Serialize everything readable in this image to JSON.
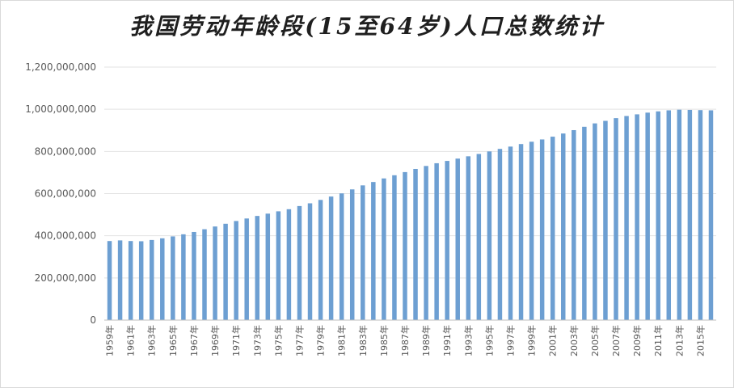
{
  "chart_data": {
    "type": "bar",
    "title": "我国劳动年龄段(15至64岁)人口总数统计",
    "xlabel": "",
    "ylabel": "",
    "ylim": [
      0,
      1200000000
    ],
    "yticks": [
      0,
      200000000,
      400000000,
      600000000,
      800000000,
      1000000000,
      1200000000
    ],
    "ytick_labels": [
      "0",
      "200,000,000",
      "400,000,000",
      "600,000,000",
      "800,000,000",
      "1,000,000,000",
      "1,200,000,000"
    ],
    "grid": true,
    "legend": "none",
    "bar_color": "#6d9fd2",
    "categories": [
      "1959年",
      "1960年",
      "1961年",
      "1962年",
      "1963年",
      "1964年",
      "1965年",
      "1966年",
      "1967年",
      "1968年",
      "1969年",
      "1970年",
      "1971年",
      "1972年",
      "1973年",
      "1974年",
      "1975年",
      "1976年",
      "1977年",
      "1978年",
      "1979年",
      "1980年",
      "1981年",
      "1982年",
      "1983年",
      "1984年",
      "1985年",
      "1986年",
      "1987年",
      "1988年",
      "1989年",
      "1990年",
      "1991年",
      "1992年",
      "1993年",
      "1994年",
      "1995年",
      "1996年",
      "1997年",
      "1998年",
      "1999年",
      "2000年",
      "2001年",
      "2002年",
      "2003年",
      "2004年",
      "2005年",
      "2006年",
      "2007年",
      "2008年",
      "2009年",
      "2010年",
      "2011年",
      "2012年",
      "2013年",
      "2014年",
      "2015年",
      "2016年"
    ],
    "shown_category_labels": [
      "1959年",
      "1961年",
      "1963年",
      "1965年",
      "1967年",
      "1969年",
      "1971年",
      "1973年",
      "1975年",
      "1977年",
      "1979年",
      "1981年",
      "1983年",
      "1985年",
      "1987年",
      "1989年",
      "1991年",
      "1993年",
      "1995年",
      "1997年",
      "1999年",
      "2001年",
      "2003年",
      "2005年",
      "2007年",
      "2009年",
      "2011年",
      "2013年",
      "2015年"
    ],
    "values": [
      375000000,
      378000000,
      375000000,
      374000000,
      380000000,
      388000000,
      397000000,
      407000000,
      418000000,
      431000000,
      444000000,
      457000000,
      470000000,
      482000000,
      494000000,
      505000000,
      516000000,
      526000000,
      541000000,
      554000000,
      570000000,
      586000000,
      601000000,
      620000000,
      639000000,
      655000000,
      672000000,
      687000000,
      702000000,
      717000000,
      731000000,
      744000000,
      755000000,
      766000000,
      777000000,
      788000000,
      800000000,
      812000000,
      823000000,
      835000000,
      846000000,
      857000000,
      870000000,
      885000000,
      901000000,
      917000000,
      933000000,
      945000000,
      958000000,
      968000000,
      976000000,
      984000000,
      990000000,
      995000000,
      998000000,
      997000000,
      996000000,
      995000000
    ]
  }
}
